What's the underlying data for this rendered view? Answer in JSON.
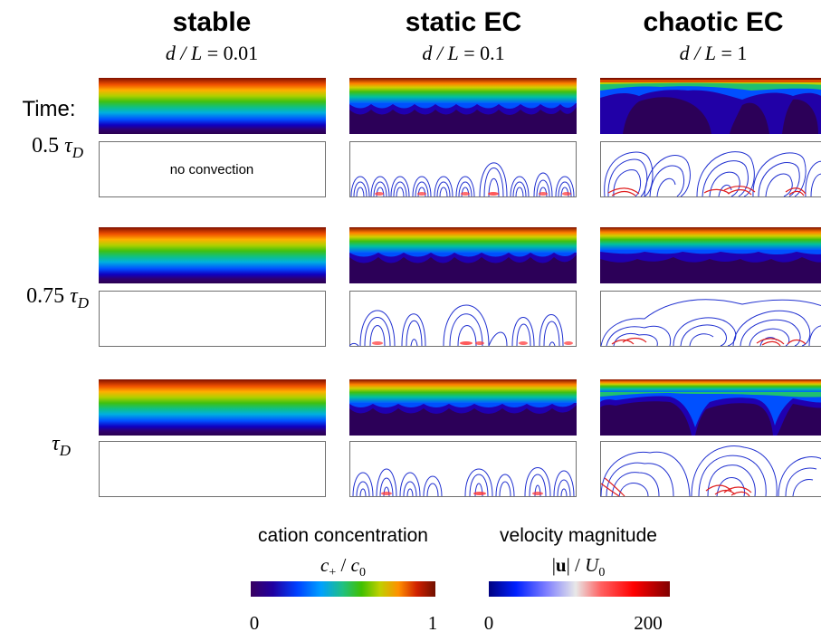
{
  "columns": [
    {
      "title": "stable",
      "ratio_var": "d / L",
      "ratio_eq": "=",
      "ratio_value": "0.01"
    },
    {
      "title": "static EC",
      "ratio_var": "d / L",
      "ratio_eq": "=",
      "ratio_value": "0.1"
    },
    {
      "title": "chaotic EC",
      "ratio_var": "d / L",
      "ratio_eq": "=",
      "ratio_value": "1"
    }
  ],
  "row_header": "Time:",
  "rows": [
    {
      "coef": "0.5",
      "symbol": "τ",
      "sub": "D"
    },
    {
      "coef": "0.75",
      "symbol": "τ",
      "sub": "D"
    },
    {
      "coef": "",
      "symbol": "τ",
      "sub": "D"
    }
  ],
  "no_convection_note": "no convection",
  "legend": {
    "concentration": {
      "title": "cation concentration",
      "formula_num": "c",
      "formula_num_sub": "+",
      "formula_den": "c",
      "formula_den_sub": "0",
      "min_label": "0",
      "max_label": "1",
      "colors": [
        "#3a0060",
        "#2000a0",
        "#0040ff",
        "#00a0ff",
        "#20c080",
        "#40c000",
        "#c0d000",
        "#ff9000",
        "#d02000",
        "#701000"
      ]
    },
    "velocity": {
      "title": "velocity magnitude",
      "formula_vec": "u",
      "formula_den": "U",
      "formula_den_sub": "0",
      "min_label": "0",
      "max_label": "200",
      "colors": [
        "#000080",
        "#0020ff",
        "#8080ff",
        "#e8e8e8",
        "#ff6060",
        "#ff0000",
        "#800000"
      ]
    }
  }
}
